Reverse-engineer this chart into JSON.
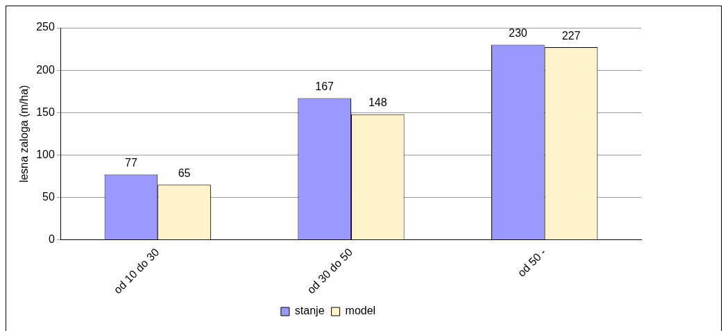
{
  "chart_data": {
    "type": "bar",
    "ylabel": "lesna zaloga (m/ha)",
    "categories": [
      "od 10 do 30",
      "od 30 do 50",
      "od 50 -"
    ],
    "series": [
      {
        "name": "stanje",
        "color": "#9999ff",
        "values": [
          77,
          167,
          230
        ]
      },
      {
        "name": "model",
        "color": "#fff3cc",
        "values": [
          65,
          148,
          227
        ]
      }
    ],
    "ylim": [
      0,
      250
    ],
    "yticks": [
      0,
      50,
      100,
      150,
      200,
      250
    ],
    "grid": "y",
    "legend": "bottom",
    "data_labels": true
  }
}
